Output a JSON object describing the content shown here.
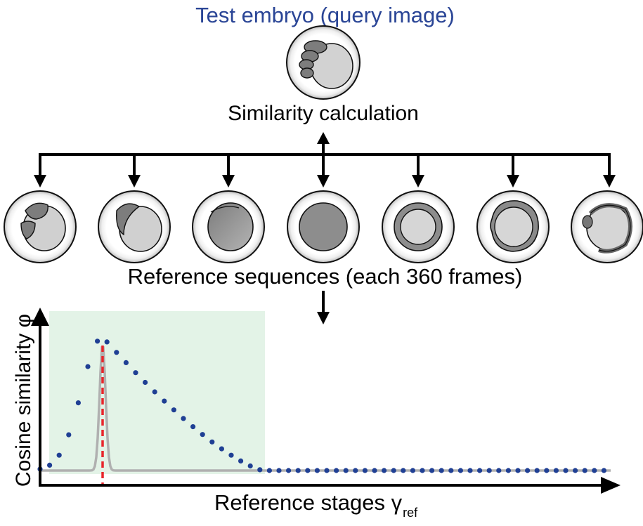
{
  "title": "Test embryo (query image)",
  "similarity_label": "Similarity calculation",
  "reference_label": "Reference sequences (each 360 frames)",
  "x_axis_label": "Reference stages γ",
  "x_axis_subscript": "ref",
  "y_axis_label": "Cosine similarity φ",
  "colors": {
    "title": "#2a4596",
    "dotted_curve": "#1f3f94",
    "gray_curve": "#b0b0b0",
    "red_line": "#e8262b",
    "highlight": "#e3f3e7"
  },
  "reference_embryos": [
    "cleavage-stage-embryo",
    "two-cell-embryo",
    "one-cell-embryo",
    "morula-embryo",
    "blastula-embryo",
    "gastrula-embryo",
    "segmentation-embryo"
  ]
}
